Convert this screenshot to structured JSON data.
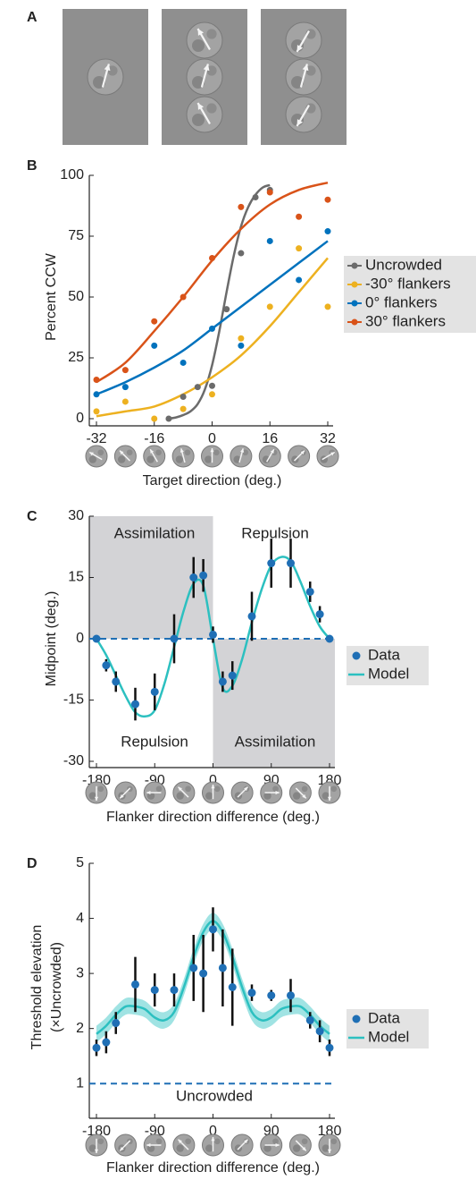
{
  "panel_labels": [
    "A",
    "B",
    "C",
    "D"
  ],
  "chart_data": [
    {
      "type": "scatter",
      "xlabel": "Target direction (deg.)",
      "ylabel": "Percent CCW",
      "xlim": [
        -32,
        32
      ],
      "ylim": [
        0,
        100
      ],
      "xticks": [
        -32,
        -16,
        0,
        16,
        32
      ],
      "yticks": [
        0,
        25,
        50,
        75,
        100
      ],
      "series": [
        {
          "name": "Uncrowded",
          "color": "#6b6b6b",
          "x": [
            -12,
            -8,
            -4,
            0,
            4,
            8,
            12,
            16
          ],
          "values": [
            0,
            9,
            13,
            13.5,
            45,
            68,
            91,
            94
          ],
          "fit": {
            "x": [
              -12,
              -10,
              -8,
              -6,
              -4,
              -2,
              0,
              2,
              4,
              6,
              8,
              10,
              12,
              14,
              16
            ],
            "values": [
              0,
              0.5,
              1.5,
              3,
              6,
              12,
              22,
              36,
              52,
              67,
              79,
              87,
              92,
              95,
              96
            ]
          }
        },
        {
          "name": "-30° flankers",
          "color": "#edb120",
          "x": [
            -32,
            -24,
            -16,
            -8,
            0,
            8,
            16,
            24,
            32
          ],
          "values": [
            3,
            7,
            0,
            4,
            10,
            33,
            46,
            70,
            46
          ],
          "fit": {
            "x": [
              -32,
              -24,
              -16,
              -8,
              0,
              8,
              16,
              24,
              32
            ],
            "values": [
              1,
              3,
              5,
              10,
              17,
              26,
              38,
              52,
              66
            ]
          }
        },
        {
          "name": "0° flankers",
          "color": "#0072bd",
          "x": [
            -32,
            -24,
            -16,
            -8,
            0,
            8,
            16,
            24,
            32
          ],
          "values": [
            10,
            13,
            30,
            23,
            37,
            30,
            73,
            57,
            77
          ],
          "fit": {
            "x": [
              -32,
              -24,
              -16,
              -8,
              0,
              8,
              16,
              24,
              32
            ],
            "values": [
              10,
              15,
              21,
              28,
              37,
              46,
              55,
              64,
              73
            ]
          }
        },
        {
          "name": "30° flankers",
          "color": "#d95319",
          "x": [
            -32,
            -24,
            -16,
            -8,
            0,
            8,
            16,
            24,
            32
          ],
          "values": [
            16,
            20,
            40,
            50,
            66,
            87,
            93,
            83,
            90
          ],
          "fit": {
            "x": [
              -32,
              -24,
              -16,
              -8,
              0,
              8,
              16,
              24,
              32
            ],
            "values": [
              15,
              23,
              36,
              50,
              65,
              78,
              88,
              94,
              97
            ]
          }
        }
      ]
    },
    {
      "type": "errorbar",
      "xlabel": "Flanker direction difference (deg.)",
      "ylabel": [
        "Midpoint (deg.)"
      ],
      "xlim": [
        -180,
        180
      ],
      "ylim": [
        -30,
        30
      ],
      "xticks": [
        -180,
        -90,
        0,
        90,
        180
      ],
      "yticks": [
        -30,
        -15,
        0,
        15,
        30
      ],
      "hline": 0,
      "shading": true,
      "annotations": [
        "Assimilation",
        "Repulsion",
        "Repulsion",
        "Assimilation"
      ],
      "series": [
        {
          "name": "Data",
          "color": "#1f6fb5",
          "x": [
            -180,
            -165,
            -150,
            -120,
            -90,
            -60,
            -30,
            -15,
            0,
            15,
            30,
            60,
            90,
            120,
            150,
            165,
            180
          ],
          "values": [
            0,
            -6.5,
            -10.5,
            -16,
            -13,
            0,
            15,
            15.5,
            1,
            -10.5,
            -9,
            5.5,
            18.5,
            18.5,
            11.5,
            6,
            0
          ],
          "errors": [
            0,
            1.5,
            2.5,
            4,
            4.5,
            6,
            5,
            4,
            2,
            2.5,
            3.5,
            6,
            6,
            6,
            2.5,
            2,
            0
          ]
        }
      ],
      "model": {
        "name": "Model",
        "color": "#2cc0c0",
        "x": [
          -180,
          -165,
          -150,
          -135,
          -120,
          -105,
          -90,
          -75,
          -60,
          -45,
          -30,
          -15,
          0,
          15,
          30,
          45,
          60,
          75,
          90,
          105,
          120,
          135,
          150,
          165,
          180
        ],
        "values": [
          0,
          -4,
          -9,
          -14,
          -18,
          -19,
          -17.5,
          -11,
          -2,
          7,
          13.5,
          13,
          0,
          -12,
          -11.5,
          -5,
          4,
          12,
          18,
          20,
          19,
          14,
          8,
          3,
          0
        ]
      }
    },
    {
      "type": "errorbar",
      "xlabel": "Flanker direction difference (deg.)",
      "ylabel": [
        "Threshold elevation",
        "(×Uncrowded)"
      ],
      "xlim": [
        -180,
        180
      ],
      "ylim": [
        0.5,
        5
      ],
      "xticks": [
        -180,
        -90,
        0,
        90,
        180
      ],
      "yticks": [
        1,
        2,
        3,
        4,
        5
      ],
      "hline": 1,
      "annotations": [
        "Uncrowded"
      ],
      "series": [
        {
          "name": "Data",
          "color": "#1f6fb5",
          "x": [
            -180,
            -165,
            -150,
            -120,
            -90,
            -60,
            -30,
            -15,
            0,
            15,
            30,
            60,
            90,
            120,
            150,
            165,
            180
          ],
          "values": [
            1.65,
            1.75,
            2.1,
            2.8,
            2.7,
            2.7,
            3.1,
            3.0,
            3.8,
            3.1,
            2.75,
            2.65,
            2.6,
            2.6,
            2.15,
            1.95,
            1.65
          ],
          "errors": [
            0.15,
            0.2,
            0.2,
            0.5,
            0.3,
            0.3,
            0.6,
            0.7,
            0.4,
            0.7,
            0.7,
            0.15,
            0.1,
            0.3,
            0.15,
            0.2,
            0.15
          ]
        }
      ],
      "model": {
        "name": "Model",
        "color": "#2cc0c0",
        "x": [
          -180,
          -165,
          -150,
          -135,
          -120,
          -105,
          -90,
          -75,
          -60,
          -45,
          -30,
          -15,
          0,
          15,
          30,
          45,
          60,
          75,
          90,
          105,
          120,
          135,
          150,
          165,
          180
        ],
        "values": [
          1.9,
          2.05,
          2.25,
          2.4,
          2.4,
          2.35,
          2.2,
          2.15,
          2.3,
          2.75,
          3.3,
          3.75,
          3.95,
          3.75,
          3.3,
          2.75,
          2.3,
          2.15,
          2.2,
          2.35,
          2.4,
          2.4,
          2.25,
          2.05,
          1.9
        ],
        "lower": [
          1.75,
          1.9,
          2.1,
          2.25,
          2.25,
          2.2,
          2.05,
          2.0,
          2.15,
          2.6,
          3.15,
          3.6,
          3.8,
          3.6,
          3.15,
          2.6,
          2.15,
          2.0,
          2.05,
          2.2,
          2.25,
          2.25,
          2.1,
          1.9,
          1.75
        ],
        "upper": [
          2.05,
          2.2,
          2.4,
          2.55,
          2.55,
          2.5,
          2.35,
          2.3,
          2.45,
          2.9,
          3.45,
          3.9,
          4.1,
          3.9,
          3.45,
          2.9,
          2.45,
          2.3,
          2.35,
          2.5,
          2.55,
          2.55,
          2.4,
          2.2,
          2.05
        ]
      }
    }
  ]
}
